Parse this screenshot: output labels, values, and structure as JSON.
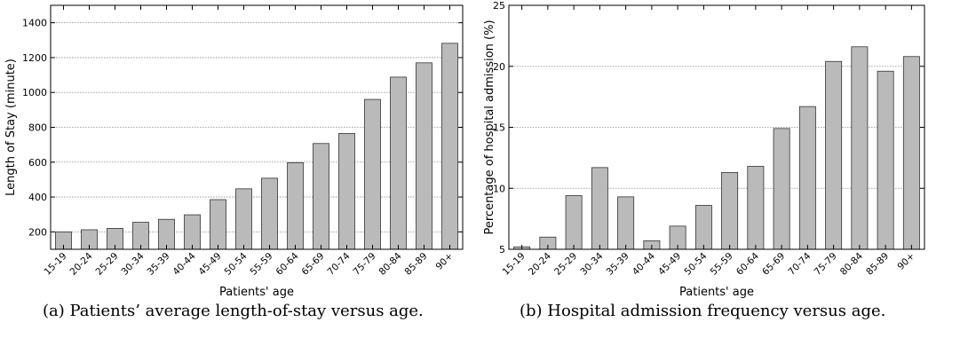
{
  "chart_data": [
    {
      "type": "bar",
      "categories": [
        "15-19",
        "20-24",
        "25-29",
        "30-34",
        "35-39",
        "40-44",
        "45-49",
        "50-54",
        "55-59",
        "60-64",
        "65-69",
        "70-74",
        "75-79",
        "80-84",
        "85-89",
        "90+"
      ],
      "values": [
        200,
        212,
        220,
        255,
        272,
        298,
        385,
        447,
        508,
        597,
        707,
        765,
        960,
        1088,
        1170,
        1282
      ],
      "xlabel": "Patients' age",
      "ylabel": "Length of Stay (minute)",
      "ylim": [
        100,
        1500
      ],
      "yticks": [
        200,
        400,
        600,
        800,
        1000,
        1200,
        1400
      ],
      "grid": true,
      "bar_color": "#bababa",
      "caption": "(a) Patients’ average length-of-stay versus age."
    },
    {
      "type": "bar",
      "categories": [
        "15-19",
        "20-24",
        "25-29",
        "30-34",
        "35-39",
        "40-44",
        "45-49",
        "50-54",
        "55-59",
        "60-64",
        "65-69",
        "70-74",
        "75-79",
        "80-84",
        "85-89",
        "90+"
      ],
      "values": [
        5.2,
        6.0,
        9.4,
        11.7,
        9.3,
        5.7,
        6.9,
        8.6,
        11.3,
        11.8,
        14.9,
        16.7,
        20.4,
        21.6,
        19.6,
        20.8
      ],
      "xlabel": "Patients' age",
      "ylabel": "Percentage of hospital admission (%)",
      "ylim": [
        5,
        25
      ],
      "yticks": [
        5,
        10,
        15,
        20,
        25
      ],
      "grid": true,
      "bar_color": "#bababa",
      "caption": "(b) Hospital admission frequency versus age."
    }
  ]
}
